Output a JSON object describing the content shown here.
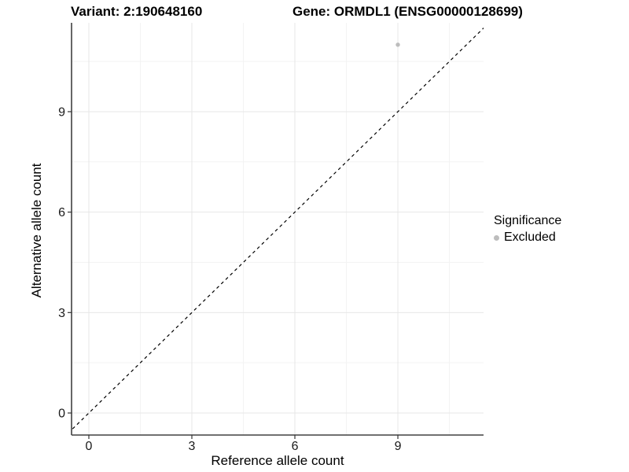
{
  "titles": {
    "variant": "Variant: 2:190648160",
    "gene": "Gene: ORMDL1 (ENSG00000128699)"
  },
  "chart_data": {
    "type": "scatter",
    "xlabel": "Reference allele count",
    "ylabel": "Alternative allele count",
    "x_ticks": [
      0,
      3,
      6,
      9
    ],
    "y_ticks": [
      0,
      3,
      6,
      9
    ],
    "minor_ticks": [
      1.5,
      4.5,
      7.5,
      10.5
    ],
    "xlim": [
      -0.5,
      11.5
    ],
    "ylim": [
      -0.66,
      11.65
    ],
    "grid": "major and minor, light gray on white panel",
    "points": [
      {
        "x": 9,
        "y": 11,
        "series": "Excluded"
      }
    ],
    "abline": {
      "slope": 1,
      "intercept": 0,
      "style": "dashed",
      "color": "#000000"
    },
    "legend": {
      "position": "right",
      "title": "Significance",
      "items": [
        {
          "label": "Excluded",
          "color": "#bdbdbd"
        }
      ]
    },
    "colors": {
      "point": "#bdbdbd",
      "grid_major": "#e7e7e7",
      "grid_minor": "#f3f3f3",
      "axis_line": "#404040",
      "tick_mark": "#333333",
      "panel_background": "#ffffff"
    }
  }
}
